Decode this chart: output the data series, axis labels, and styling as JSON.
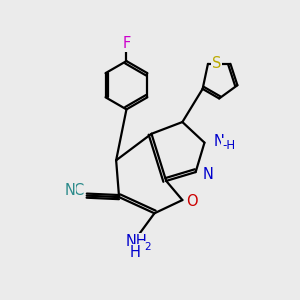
{
  "bg_color": "#ebebeb",
  "atom_colors": {
    "C": "#000000",
    "N": "#0000cc",
    "O": "#cc0000",
    "S": "#bbaa00",
    "F": "#cc00cc",
    "H": "#000000",
    "CN": "#2a8a8a"
  },
  "bond_color": "#000000",
  "bond_lw": 1.6,
  "label_fontsize": 10.5,
  "small_fontsize": 8.5
}
